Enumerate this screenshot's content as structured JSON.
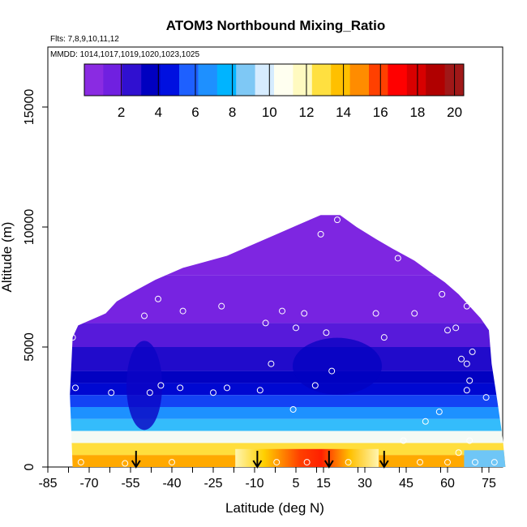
{
  "chart_data": {
    "type": "heatmap",
    "title": "ATOM3 Northbound Mixing_Ratio",
    "subtitle_flights": "Flts: 7,8,9,10,11,12",
    "subtitle_dates": "MMDD: 1014,1017,1019,1020,1023,1025",
    "xlabel": "Latitude (deg N)",
    "ylabel": "Altitude (m)",
    "xlim": [
      -85,
      80
    ],
    "ylim": [
      0,
      17500
    ],
    "x_ticks": [
      -85,
      -70,
      -55,
      -40,
      -25,
      -10,
      5,
      15,
      30,
      45,
      60,
      75
    ],
    "x_tick_labels": [
      "-85",
      "-70",
      "-55",
      "-40",
      "-25",
      "-10",
      "5",
      "15",
      "30",
      "45",
      "60",
      "75"
    ],
    "y_ticks": [
      0,
      5000,
      10000,
      15000
    ],
    "y_tick_labels": [
      "0",
      "5000",
      "10000",
      "15000"
    ],
    "colorbar": {
      "min": 0,
      "max": 20.5,
      "ticks": [
        2,
        4,
        6,
        8,
        10,
        12,
        14,
        16,
        18,
        20
      ],
      "tick_labels": [
        "2",
        "4",
        "6",
        "8",
        "10",
        "12",
        "14",
        "16",
        "18",
        "20"
      ],
      "colors": [
        "#8a2be2",
        "#7020e0",
        "#3010d0",
        "#0000c0",
        "#0010e0",
        "#1e60ff",
        "#1e90ff",
        "#00b4ff",
        "#7ec8f5",
        "#d6ecff",
        "#fffff0",
        "#fffac0",
        "#ffe040",
        "#ffc000",
        "#ff8c00",
        "#ff4000",
        "#ff0000",
        "#d80000",
        "#b00000",
        "#a01818"
      ]
    },
    "upper_boundary": [
      [
        -76,
        5400
      ],
      [
        -74,
        5900
      ],
      [
        -64,
        6400
      ],
      [
        -60,
        6900
      ],
      [
        -54,
        7300
      ],
      [
        -46,
        7800
      ],
      [
        -36,
        8300
      ],
      [
        -20,
        8800
      ],
      [
        -12,
        9200
      ],
      [
        -2,
        9700
      ],
      [
        6,
        10100
      ],
      [
        14,
        10500
      ],
      [
        21,
        10500
      ],
      [
        27,
        10000
      ],
      [
        34,
        9500
      ],
      [
        40,
        9100
      ],
      [
        48,
        8600
      ],
      [
        54,
        8100
      ],
      [
        59,
        7700
      ],
      [
        64,
        7200
      ],
      [
        68,
        6700
      ],
      [
        72,
        6200
      ],
      [
        75,
        5700
      ]
    ],
    "right_boundary": [
      [
        75,
        5700
      ],
      [
        76,
        4300
      ],
      [
        78,
        2800
      ],
      [
        80,
        1200
      ],
      [
        81,
        0
      ]
    ],
    "left_boundary": [
      [
        -76,
        5400
      ],
      [
        -77,
        3000
      ],
      [
        -76,
        0
      ]
    ],
    "vertical_profile": [
      {
        "alt": 0,
        "value": 14.5
      },
      {
        "alt": 500,
        "value": 13
      },
      {
        "alt": 1000,
        "value": 10.5
      },
      {
        "alt": 1500,
        "value": 8
      },
      {
        "alt": 2000,
        "value": 6.5
      },
      {
        "alt": 2500,
        "value": 5
      },
      {
        "alt": 3000,
        "value": 3.8
      },
      {
        "alt": 3500,
        "value": 3.2
      },
      {
        "alt": 4000,
        "value": 2.5
      },
      {
        "alt": 5000,
        "value": 1.5
      },
      {
        "alt": 6000,
        "value": 0.8
      },
      {
        "alt": 8000,
        "value": 0.5
      },
      {
        "alt": 10500,
        "value": 0.3
      }
    ],
    "max_near_surface": 20,
    "max_near_surface_lat": [
      -5,
      25
    ],
    "arrow_markers_lat": [
      -53,
      -9,
      17,
      37
    ],
    "observation_points": [
      [
        -76,
        5400
      ],
      [
        -75,
        3300
      ],
      [
        -73,
        200
      ],
      [
        -62,
        3100
      ],
      [
        -57,
        150
      ],
      [
        -50,
        6300
      ],
      [
        -48,
        3100
      ],
      [
        -45,
        7000
      ],
      [
        -44,
        3400
      ],
      [
        -40,
        200
      ],
      [
        -37,
        3300
      ],
      [
        -36,
        6500
      ],
      [
        -25,
        3100
      ],
      [
        -22,
        6700
      ],
      [
        -20,
        3300
      ],
      [
        -8,
        3200
      ],
      [
        -6,
        6000
      ],
      [
        -4,
        4300
      ],
      [
        -2,
        200
      ],
      [
        0,
        6500
      ],
      [
        4,
        2400
      ],
      [
        5,
        5800
      ],
      [
        8,
        6400
      ],
      [
        9,
        200
      ],
      [
        12,
        3400
      ],
      [
        14,
        9700
      ],
      [
        16,
        5600
      ],
      [
        18,
        4000
      ],
      [
        20,
        10300
      ],
      [
        24,
        200
      ],
      [
        34,
        6400
      ],
      [
        37,
        5400
      ],
      [
        42,
        8700
      ],
      [
        44,
        1100
      ],
      [
        48,
        6400
      ],
      [
        50,
        200
      ],
      [
        52,
        1900
      ],
      [
        57,
        2300
      ],
      [
        58,
        7200
      ],
      [
        60,
        5700
      ],
      [
        60,
        200
      ],
      [
        62,
        7800
      ],
      [
        63,
        5800
      ],
      [
        64,
        600
      ],
      [
        65,
        4500
      ],
      [
        67,
        3200
      ],
      [
        67,
        4300
      ],
      [
        67,
        6700
      ],
      [
        68,
        1100
      ],
      [
        68,
        3600
      ],
      [
        69,
        4800
      ],
      [
        70,
        200
      ],
      [
        72,
        6600
      ],
      [
        74,
        2900
      ],
      [
        77,
        200
      ]
    ]
  }
}
